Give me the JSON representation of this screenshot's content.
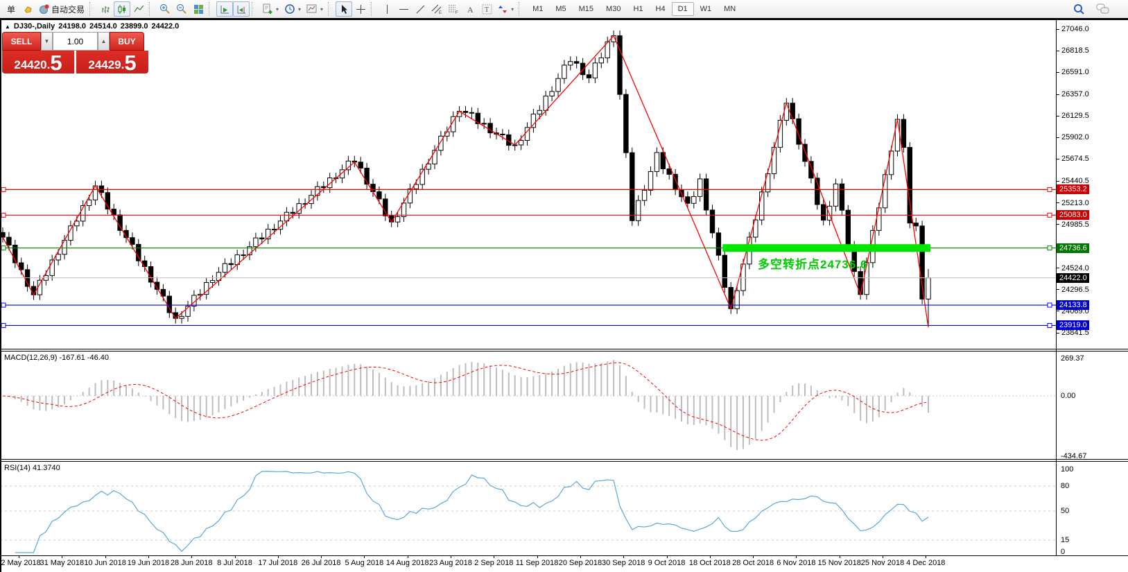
{
  "toolbar": {
    "order_button": "单",
    "auto_trading": "自动交易",
    "timeframes": [
      "M1",
      "M5",
      "M15",
      "M30",
      "H1",
      "H4",
      "D1",
      "W1",
      "MN"
    ],
    "selected_timeframe": "D1"
  },
  "chart_header": {
    "symbol": "DJ30-,Daily",
    "open": "24198.0",
    "high": "24514.0",
    "low": "23899.0",
    "close": "24422.0"
  },
  "trade_panel": {
    "sell_label": "SELL",
    "buy_label": "BUY",
    "volume": "1.00",
    "sell_price": {
      "main": "24420",
      "dot": ".",
      "pip": "5"
    },
    "buy_price": {
      "main": "24429",
      "dot": ".",
      "pip": "5"
    }
  },
  "price_axis": {
    "ticks": [
      27046.0,
      26818.5,
      26591.0,
      26357.0,
      26129.5,
      25902.0,
      25674.5,
      25440.5,
      25213.0,
      24985.5,
      24524.0,
      24296.5,
      24069.0,
      23841.5
    ],
    "badges": [
      {
        "label": "25353.2",
        "price": 25353.2,
        "bg": "#cc0000"
      },
      {
        "label": "25083.0",
        "price": 25083.0,
        "bg": "#cc0000"
      },
      {
        "label": "24736.6",
        "price": 24736.6,
        "bg": "#007800"
      },
      {
        "label": "24422.0",
        "price": 24422.0,
        "bg": "#000000"
      },
      {
        "label": "24133.8",
        "price": 24133.8,
        "bg": "#0000cc"
      },
      {
        "label": "23919.0",
        "price": 23919.0,
        "bg": "#0000cc"
      }
    ]
  },
  "indicator_macd": {
    "label": "MACD(12,26,9)",
    "values": "-167.61 -46.40",
    "axis_labels": [
      "269.37",
      "0.00",
      "-434.67"
    ]
  },
  "indicator_rsi": {
    "label": "RSI(14)",
    "value": "41.3740",
    "axis_labels": [
      "100",
      "80",
      "50",
      "15",
      "0"
    ],
    "grid_levels": [
      80,
      50,
      15
    ]
  },
  "date_axis": [
    "22 May 2018",
    "31 May 2018",
    "10 Jun 2018",
    "19 Jun 2018",
    "28 Jun 2018",
    "8 Jul 2018",
    "17 Jul 2018",
    "26 Jul 2018",
    "5 Aug 2018",
    "14 Aug 2018",
    "23 Aug 2018",
    "2 Sep 2018",
    "11 Sep 2018",
    "20 Sep 2018",
    "30 Sep 2018",
    "9 Oct 2018",
    "18 Oct 2018",
    "28 Oct 2018",
    "6 Nov 2018",
    "15 Nov 2018",
    "25 Nov 2018",
    "4 Dec 2018"
  ],
  "annotation": {
    "text": "多空转折点24736.6",
    "color": "#00cc00"
  },
  "chart_data": {
    "type": "candlestick",
    "symbol": "DJ30",
    "period": "Daily",
    "title": "DJ30-,Daily 24198.0 24514.0 23899.0 24422.0",
    "y_axis_range": [
      23841.5,
      27046.0
    ],
    "visible_range": {
      "first_label": "22 May 2018",
      "last_label": "4 Dec 2018"
    },
    "first_open": 24900,
    "last_bar_ohlc": {
      "open": 24198.0,
      "high": 24514.0,
      "low": 23899.0,
      "close": 24422.0
    },
    "closes": [
      24850,
      24767,
      24580,
      24508,
      24331,
      24243,
      24396,
      24446,
      24610,
      24670,
      24818,
      24970,
      25020,
      25184,
      25244,
      25392,
      25321,
      25147,
      25086,
      24922,
      24846,
      24775,
      24601,
      24540,
      24376,
      24300,
      24229,
      24054,
      23994,
      24015,
      24123,
      24237,
      24248,
      24372,
      24393,
      24480,
      24572,
      24561,
      24664,
      24664,
      24751,
      24843,
      24832,
      24935,
      24934,
      25021,
      25113,
      25102,
      25205,
      25205,
      25292,
      25384,
      25373,
      25476,
      25475,
      25562,
      25654,
      25643,
      25579,
      25410,
      25330,
      25254,
      25076,
      25011,
      25067,
      25211,
      25361,
      25407,
      25567,
      25623,
      25767,
      25917,
      25963,
      26123,
      26179,
      26166,
      26159,
      26048,
      26052,
      25951,
      25938,
      25931,
      25820,
      25824,
      25872,
      26008,
      26150,
      26188,
      26340,
      26388,
      26525,
      26666,
      26704,
      26686,
      26565,
      26531,
      26689,
      26743,
      26912,
      26976,
      26357,
      25742,
      25025,
      25238,
      25346,
      25543,
      25744,
      25572,
      25514,
      25351,
      25277,
      25208,
      25280,
      25466,
      25137,
      24896,
      24660,
      24321,
      24096,
      24287,
      24567,
      24851,
      25033,
      25328,
      25520,
      25799,
      26084,
      26265,
      26100,
      25831,
      25650,
      25474,
      25195,
      25030,
      25178,
      25413,
      25135,
      24755,
      24488,
      24246,
      24582,
      24922,
      25160,
      25511,
      25759,
      26094,
      25798,
      25000,
      24969,
      24198,
      24422
    ],
    "zigzag_points": [
      [
        0,
        24850
      ],
      [
        5,
        24243
      ],
      [
        15,
        25392
      ],
      [
        28,
        23994
      ],
      [
        57,
        25643
      ],
      [
        63,
        25011
      ],
      [
        74,
        26179
      ],
      [
        83,
        25824
      ],
      [
        99,
        26976
      ],
      [
        118,
        24096
      ],
      [
        127,
        26265
      ],
      [
        139,
        24246
      ],
      [
        145,
        26094
      ],
      [
        150,
        23899
      ]
    ],
    "horizontal_lines": [
      {
        "price": 25353.2,
        "color": "#ee0000",
        "style": "solid",
        "handles": true
      },
      {
        "price": 25083.0,
        "color": "#ee0000",
        "style": "solid",
        "handles": true
      },
      {
        "price": 24736.6,
        "color": "#008000",
        "style": "solid",
        "handles": true
      },
      {
        "price": 24133.8,
        "color": "#0000ee",
        "style": "solid",
        "handles": true
      },
      {
        "price": 23919.0,
        "color": "#0000ee",
        "style": "solid",
        "handles": true
      },
      {
        "price": 24422.0,
        "color": "#c0c0c0",
        "style": "bid",
        "handles": false
      }
    ],
    "highlight_zone": {
      "price": 24736.6,
      "bar_start": 117,
      "bar_end": 150,
      "color": "#00e600"
    },
    "macd_axis_range": [
      -434.67,
      269.37
    ],
    "rsi_axis_range": [
      0,
      100
    ]
  }
}
